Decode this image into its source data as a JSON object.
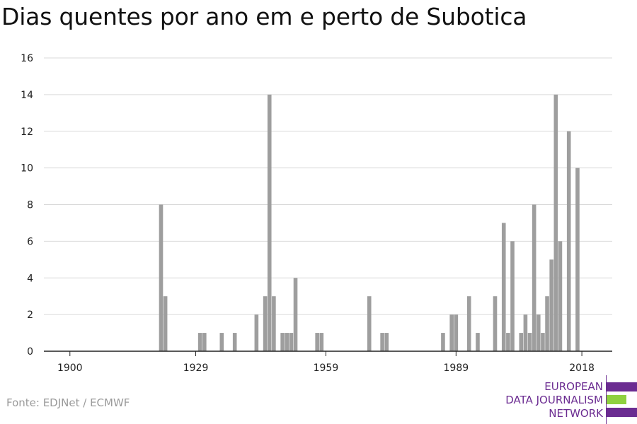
{
  "title": "Dias quentes por ano em e perto de Subotica",
  "source": "Fonte: EDJNet / ECMWF",
  "logo": {
    "line1": "EUROPEAN",
    "line2": "DATA JOURNALISM",
    "line3": "NETWORK",
    "colors": {
      "purple": "#6b2c91",
      "green": "#8fd13f"
    }
  },
  "colors": {
    "bar": "#9e9e9e",
    "grid": "#d9d9d9",
    "axis": "#222222",
    "tick_text": "#222222"
  },
  "chart_data": {
    "type": "bar",
    "title": "Dias quentes por ano em e perto de Subotica",
    "xlabel": "",
    "ylabel": "",
    "xlim": [
      1894,
      2025
    ],
    "ylim": [
      0,
      16
    ],
    "yticks": [
      0,
      2,
      4,
      6,
      8,
      10,
      12,
      14,
      16
    ],
    "xticks": [
      1900,
      1929,
      1959,
      1989,
      2018
    ],
    "grid": true,
    "legend": "none",
    "points": [
      {
        "year": 1921,
        "value": 8
      },
      {
        "year": 1922,
        "value": 3
      },
      {
        "year": 1930,
        "value": 1
      },
      {
        "year": 1931,
        "value": 1
      },
      {
        "year": 1935,
        "value": 1
      },
      {
        "year": 1938,
        "value": 1
      },
      {
        "year": 1943,
        "value": 2
      },
      {
        "year": 1945,
        "value": 3
      },
      {
        "year": 1946,
        "value": 14
      },
      {
        "year": 1947,
        "value": 3
      },
      {
        "year": 1949,
        "value": 1
      },
      {
        "year": 1950,
        "value": 1
      },
      {
        "year": 1951,
        "value": 1
      },
      {
        "year": 1952,
        "value": 4
      },
      {
        "year": 1957,
        "value": 1
      },
      {
        "year": 1958,
        "value": 1
      },
      {
        "year": 1969,
        "value": 3
      },
      {
        "year": 1972,
        "value": 1
      },
      {
        "year": 1973,
        "value": 1
      },
      {
        "year": 1986,
        "value": 1
      },
      {
        "year": 1988,
        "value": 2
      },
      {
        "year": 1989,
        "value": 2
      },
      {
        "year": 1992,
        "value": 3
      },
      {
        "year": 1994,
        "value": 1
      },
      {
        "year": 1998,
        "value": 3
      },
      {
        "year": 2000,
        "value": 7
      },
      {
        "year": 2001,
        "value": 1
      },
      {
        "year": 2002,
        "value": 6
      },
      {
        "year": 2004,
        "value": 1
      },
      {
        "year": 2005,
        "value": 2
      },
      {
        "year": 2006,
        "value": 1
      },
      {
        "year": 2007,
        "value": 8
      },
      {
        "year": 2008,
        "value": 2
      },
      {
        "year": 2009,
        "value": 1
      },
      {
        "year": 2010,
        "value": 3
      },
      {
        "year": 2011,
        "value": 5
      },
      {
        "year": 2012,
        "value": 14
      },
      {
        "year": 2013,
        "value": 6
      },
      {
        "year": 2015,
        "value": 12
      },
      {
        "year": 2017,
        "value": 10
      }
    ]
  }
}
